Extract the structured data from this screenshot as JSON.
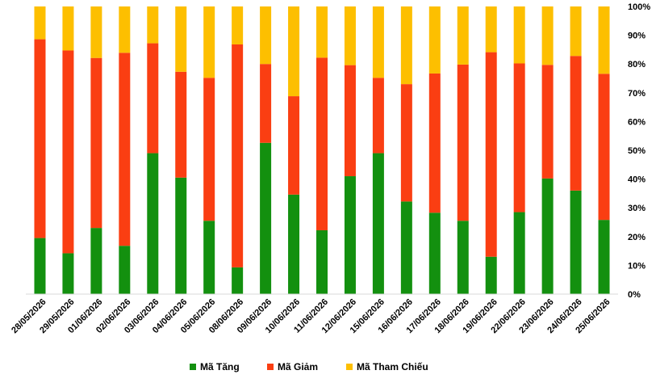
{
  "chart_data": {
    "type": "bar",
    "stacked": true,
    "normalized": true,
    "categories": [
      "28/05/2026",
      "29/05/2026",
      "01/06/2026",
      "02/06/2026",
      "03/06/2026",
      "04/06/2026",
      "05/06/2026",
      "08/06/2026",
      "09/06/2026",
      "10/06/2026",
      "11/06/2026",
      "12/06/2026",
      "15/06/2026",
      "16/06/2026",
      "17/06/2026",
      "18/06/2026",
      "19/06/2026",
      "22/06/2026",
      "23/06/2026",
      "24/06/2026",
      "25/06/2026"
    ],
    "series": [
      {
        "name": "Mã Tăng",
        "color": "#13900f",
        "values": [
          0.195,
          0.142,
          0.23,
          0.168,
          0.49,
          0.405,
          0.255,
          0.093,
          0.526,
          0.346,
          0.222,
          0.41,
          0.49,
          0.322,
          0.283,
          0.255,
          0.13,
          0.285,
          0.402,
          0.36,
          0.258
        ]
      },
      {
        "name": "Mã Giảm",
        "color": "#fa3e12",
        "values": [
          0.691,
          0.705,
          0.591,
          0.671,
          0.382,
          0.368,
          0.497,
          0.775,
          0.274,
          0.342,
          0.6,
          0.386,
          0.262,
          0.408,
          0.484,
          0.543,
          0.711,
          0.517,
          0.395,
          0.468,
          0.508
        ]
      },
      {
        "name": "Mã Tham Chiếu",
        "color": "#fdbf00",
        "values": [
          0.114,
          0.153,
          0.179,
          0.161,
          0.128,
          0.227,
          0.248,
          0.132,
          0.2,
          0.312,
          0.178,
          0.204,
          0.248,
          0.27,
          0.233,
          0.202,
          0.159,
          0.198,
          0.203,
          0.172,
          0.234
        ]
      }
    ],
    "yticks": [
      "0%",
      "10%",
      "20%",
      "30%",
      "40%",
      "50%",
      "60%",
      "70%",
      "80%",
      "90%",
      "100%"
    ],
    "ylim": [
      0,
      1
    ],
    "y_axis_position": "right",
    "grid": false,
    "legend_position": "bottom-center"
  }
}
